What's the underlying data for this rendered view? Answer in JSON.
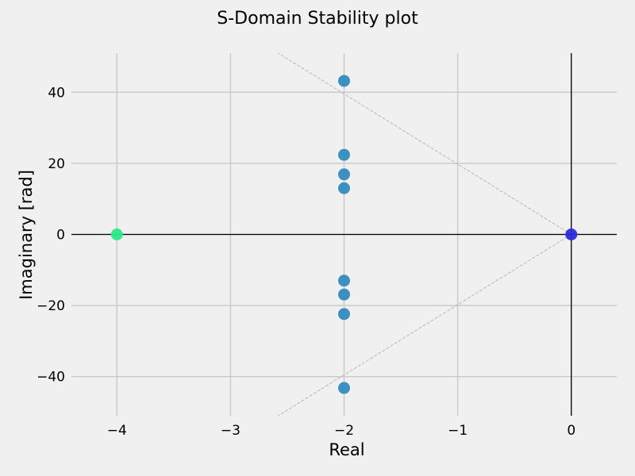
{
  "chart_data": {
    "type": "scatter",
    "title": "S-Domain Stability plot",
    "xlabel": "Real",
    "ylabel": "Imaginary [rad]",
    "xlim": [
      -4.4,
      0.4
    ],
    "ylim": [
      -51,
      51
    ],
    "x_ticks": [
      -4,
      -3,
      -2,
      -1,
      0
    ],
    "x_tick_labels": [
      "−4",
      "−3",
      "−2",
      "−1",
      "0"
    ],
    "y_ticks": [
      -40,
      -20,
      0,
      20,
      40
    ],
    "y_tick_labels": [
      "−40",
      "−20",
      "0",
      "20",
      "40"
    ],
    "grid": true,
    "series": [
      {
        "color": "#348abd",
        "points": [
          [
            -2,
            43.2
          ],
          [
            -2,
            22.4
          ],
          [
            -2,
            16.9
          ],
          [
            -2,
            13.0
          ],
          [
            -2,
            -13.0
          ],
          [
            -2,
            -16.9
          ],
          [
            -2,
            -22.4
          ],
          [
            -2,
            -43.2
          ]
        ]
      },
      {
        "color": "#2ee88a",
        "points": [
          [
            -4,
            0
          ]
        ]
      },
      {
        "color": "#2b2bdc",
        "points": [
          [
            0,
            0
          ]
        ]
      }
    ],
    "stability_guides": [
      {
        "from": [
          0,
          0
        ],
        "to": [
          -2.58,
          51
        ]
      },
      {
        "from": [
          0,
          0
        ],
        "to": [
          -2.58,
          -51
        ]
      }
    ],
    "axes_lines": {
      "x_axis_at": 0,
      "y_axis_at": 0,
      "color": "#000000"
    }
  }
}
